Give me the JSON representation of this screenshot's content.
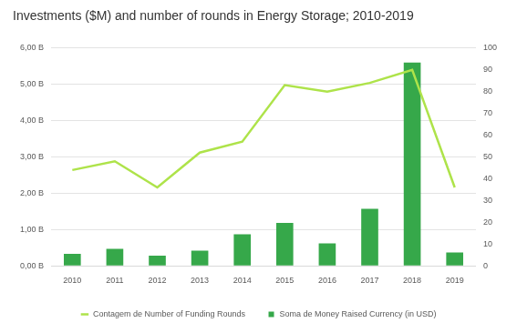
{
  "chart_data": {
    "type": "bar",
    "title": "Investments ($M) and number of rounds in Energy Storage; 2010-2019",
    "categories": [
      "2010",
      "2011",
      "2012",
      "2013",
      "2014",
      "2015",
      "2016",
      "2017",
      "2018",
      "2019"
    ],
    "series": [
      {
        "name": "Soma de Money Raised Currency (in USD)",
        "type": "bar",
        "color": "#36a84a",
        "values": [
          0.33,
          0.47,
          0.28,
          0.42,
          0.87,
          1.18,
          0.62,
          1.57,
          5.6,
          0.37
        ]
      },
      {
        "name": "Contagem de Number of Funding Rounds",
        "type": "line",
        "color": "#aee34a",
        "axis": "y2",
        "marker": "none",
        "values": [
          44,
          48,
          36,
          52,
          57,
          83,
          80,
          84,
          90,
          36
        ]
      }
    ],
    "ylim": [
      0,
      6
    ],
    "yticks": [
      {
        "value": 0,
        "label": "0,00 B"
      },
      {
        "value": 1,
        "label": "1,00 B"
      },
      {
        "value": 2,
        "label": "2,00 B"
      },
      {
        "value": 3,
        "label": "3,00 B"
      },
      {
        "value": 4,
        "label": "4,00 B"
      },
      {
        "value": 5,
        "label": "5,00 B"
      },
      {
        "value": 6,
        "label": "6,00 B"
      }
    ],
    "y2lim": [
      0,
      100
    ],
    "y2ticks": [
      0,
      10,
      20,
      30,
      40,
      50,
      60,
      70,
      80,
      90,
      100
    ],
    "grid": true,
    "legend": "bottom"
  }
}
